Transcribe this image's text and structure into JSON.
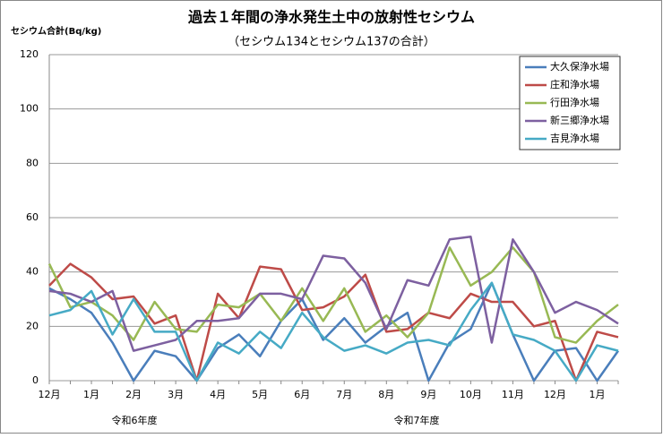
{
  "chart_data": {
    "type": "line",
    "title": "過去１年間の浄水発生土中の放射性セシウム",
    "subtitle": "（セシウム134とセシウム137の合計）",
    "y_label": "セシウム合計(Bq/kg)",
    "annotations": [
      "令和6年度",
      "令和7年度"
    ],
    "categories": [
      "12月",
      null,
      "1月",
      null,
      "2月",
      null,
      "3月",
      null,
      "4月",
      null,
      "5月",
      null,
      "6月",
      null,
      "7月",
      null,
      "8月",
      null,
      "9月",
      null,
      "10月",
      null,
      "11月",
      null,
      "12月",
      null,
      "1月",
      null
    ],
    "series": [
      {
        "name": "大久保浄水場",
        "color": "#4a7ebb",
        "values": [
          34,
          30,
          25,
          14,
          0,
          11,
          9,
          0,
          12,
          17,
          9,
          22,
          30,
          15,
          23,
          14,
          20,
          25,
          0,
          14,
          19,
          36,
          17,
          0,
          11,
          12,
          0,
          11
        ]
      },
      {
        "name": "庄和浄水場",
        "color": "#be4b48",
        "values": [
          35,
          43,
          38,
          30,
          31,
          21,
          24,
          0,
          32,
          23,
          42,
          41,
          26,
          27,
          31,
          39,
          18,
          19,
          25,
          23,
          32,
          29,
          29,
          20,
          22,
          0,
          18,
          16
        ]
      },
      {
        "name": "行田浄水場",
        "color": "#98b954",
        "values": [
          43,
          27,
          29,
          24,
          15,
          29,
          19,
          18,
          28,
          27,
          32,
          22,
          34,
          22,
          34,
          18,
          24,
          16,
          25,
          49,
          35,
          40,
          49,
          40,
          16,
          14,
          22,
          28
        ]
      },
      {
        "name": "新三郷浄水場",
        "color": "#7d60a0",
        "values": [
          33,
          32,
          29,
          33,
          11,
          13,
          15,
          22,
          22,
          23,
          32,
          32,
          30,
          46,
          45,
          36,
          19,
          37,
          35,
          52,
          53,
          14,
          52,
          40,
          25,
          29,
          26,
          21
        ]
      },
      {
        "name": "吉見浄水場",
        "color": "#46aac5",
        "values": [
          24,
          26,
          33,
          17,
          30,
          18,
          18,
          0,
          14,
          10,
          18,
          12,
          25,
          16,
          11,
          13,
          10,
          14,
          15,
          13,
          26,
          36,
          17,
          15,
          11,
          0,
          13,
          11
        ]
      }
    ],
    "ylim": [
      0,
      120
    ],
    "yticks": [
      0,
      20,
      40,
      60,
      80,
      100,
      120
    ],
    "grid": true
  }
}
